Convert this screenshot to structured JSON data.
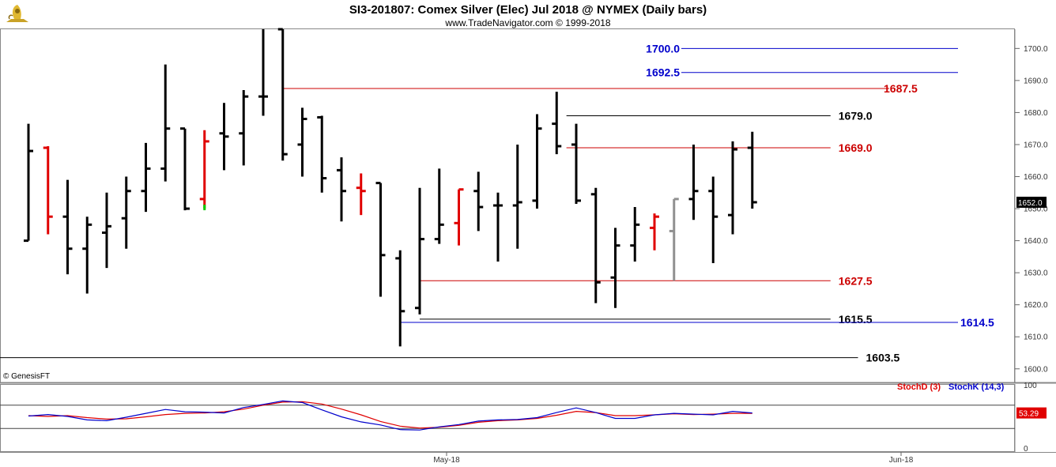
{
  "title": "SI3-201807:  Comex Silver (Elec) Jul 2018 @ NYMEX  (Daily bars)",
  "subtitle": "www.TradeNavigator.com © 1999-2018",
  "copyright": "© GenesisFT",
  "logo_icon": "cornucopia-logo-icon",
  "colors": {
    "bar_default": "#000000",
    "bar_red": "#e00000",
    "bar_gray": "#909090",
    "green_tick": "#00cc00",
    "blue_line": "#0000cc",
    "red_line": "#cc0000",
    "black_line": "#000000",
    "stoch_d": "#e00000",
    "stoch_k": "#0000cc"
  },
  "chart_data": [
    {
      "type": "ohlc",
      "title": "SI3-201807:  Comex Silver (Elec) Jul 2018 @ NYMEX  (Daily bars)",
      "ylim": [
        1596,
        1706
      ],
      "y_ticks": [
        "1700.0",
        "1690.0",
        "1680.0",
        "1670.0",
        "1660.0",
        "1650.0",
        "1640.0",
        "1630.0",
        "1620.0",
        "1610.0",
        "1600.0"
      ],
      "x_labels": [
        "May-18",
        "Jun-18"
      ],
      "last_price_label": "1652.0",
      "bars": [
        {
          "h": 1676.5,
          "l": 1640.0,
          "o": 1640.0,
          "c": 1668.0,
          "color": "black"
        },
        {
          "h": 1669.5,
          "l": 1642.0,
          "o": 1669.0,
          "c": 1647.5,
          "color": "red"
        },
        {
          "h": 1659.0,
          "l": 1629.5,
          "o": 1647.5,
          "c": 1637.5,
          "color": "black"
        },
        {
          "h": 1647.5,
          "l": 1623.5,
          "o": 1637.5,
          "c": 1645.0,
          "color": "black"
        },
        {
          "h": 1655.0,
          "l": 1631.5,
          "o": 1642.5,
          "c": 1644.5,
          "color": "black"
        },
        {
          "h": 1660.0,
          "l": 1637.5,
          "o": 1647.0,
          "c": 1655.5,
          "color": "black"
        },
        {
          "h": 1670.5,
          "l": 1649.0,
          "o": 1655.5,
          "c": 1662.5,
          "color": "black"
        },
        {
          "h": 1695.0,
          "l": 1658.5,
          "o": 1662.5,
          "c": 1675.0,
          "color": "black"
        },
        {
          "h": 1675.0,
          "l": 1649.5,
          "o": 1675.0,
          "c": 1650.0,
          "color": "black"
        },
        {
          "h": 1674.5,
          "l": 1650.0,
          "o": 1653.0,
          "c": 1671.0,
          "color": "red"
        },
        {
          "h": 1683.0,
          "l": 1662.0,
          "o": 1673.5,
          "c": 1672.5,
          "color": "black"
        },
        {
          "h": 1687.0,
          "l": 1663.5,
          "o": 1673.5,
          "c": 1685.0,
          "color": "black"
        },
        {
          "h": 1706.0,
          "l": 1679.0,
          "o": 1685.0,
          "c": 1685.0,
          "color": "black"
        },
        {
          "h": 1706.0,
          "l": 1665.0,
          "o": 1706.0,
          "c": 1667.0,
          "color": "black"
        },
        {
          "h": 1681.5,
          "l": 1660.0,
          "o": 1670.0,
          "c": 1678.0,
          "color": "black"
        },
        {
          "h": 1679.0,
          "l": 1655.0,
          "o": 1678.5,
          "c": 1659.5,
          "color": "black"
        },
        {
          "h": 1666.0,
          "l": 1646.0,
          "o": 1662.0,
          "c": 1655.5,
          "color": "black"
        },
        {
          "h": 1661.0,
          "l": 1648.0,
          "o": 1656.5,
          "c": 1655.5,
          "color": "red"
        },
        {
          "h": 1658.0,
          "l": 1622.5,
          "o": 1658.0,
          "c": 1635.5,
          "color": "black"
        },
        {
          "h": 1637.0,
          "l": 1607.0,
          "o": 1634.5,
          "c": 1618.0,
          "color": "black"
        },
        {
          "h": 1656.5,
          "l": 1617.0,
          "o": 1619.0,
          "c": 1640.5,
          "color": "black"
        },
        {
          "h": 1662.5,
          "l": 1639.0,
          "o": 1640.5,
          "c": 1645.0,
          "color": "black"
        },
        {
          "h": 1656.0,
          "l": 1638.5,
          "o": 1645.5,
          "c": 1656.0,
          "color": "red"
        },
        {
          "h": 1661.5,
          "l": 1643.0,
          "o": 1655.5,
          "c": 1650.5,
          "color": "black"
        },
        {
          "h": 1655.0,
          "l": 1633.5,
          "o": 1651.0,
          "c": 1651.0,
          "color": "black"
        },
        {
          "h": 1670.0,
          "l": 1637.5,
          "o": 1651.0,
          "c": 1652.0,
          "color": "black"
        },
        {
          "h": 1679.5,
          "l": 1650.0,
          "o": 1652.5,
          "c": 1675.0,
          "color": "black"
        },
        {
          "h": 1686.5,
          "l": 1667.0,
          "o": 1676.5,
          "c": 1669.5,
          "color": "black"
        },
        {
          "h": 1676.5,
          "l": 1651.5,
          "o": 1670.0,
          "c": 1652.5,
          "color": "black"
        },
        {
          "h": 1656.5,
          "l": 1620.5,
          "o": 1654.5,
          "c": 1627.0,
          "color": "black"
        },
        {
          "h": 1644.0,
          "l": 1619.0,
          "o": 1628.5,
          "c": 1638.5,
          "color": "black"
        },
        {
          "h": 1650.5,
          "l": 1633.5,
          "o": 1638.5,
          "c": 1645.0,
          "color": "black"
        },
        {
          "h": 1648.5,
          "l": 1637.0,
          "o": 1644.0,
          "c": 1647.5,
          "color": "red"
        },
        {
          "h": 1653.0,
          "l": 1627.5,
          "o": 1643.0,
          "c": 1653.0,
          "color": "gray"
        },
        {
          "h": 1670.0,
          "l": 1646.5,
          "o": 1653.0,
          "c": 1655.5,
          "color": "black"
        },
        {
          "h": 1660.0,
          "l": 1633.0,
          "o": 1655.5,
          "c": 1647.5,
          "color": "black"
        },
        {
          "h": 1671.0,
          "l": 1642.0,
          "o": 1648.0,
          "c": 1668.5,
          "color": "black"
        },
        {
          "h": 1674.0,
          "l": 1650.0,
          "o": 1669.0,
          "c": 1652.0,
          "color": "black"
        }
      ],
      "levels": [
        {
          "value": 1700.0,
          "label": "1700.0",
          "color": "blue",
          "x0": 0.0,
          "x1": 48.0
        },
        {
          "value": 1692.5,
          "label": "1692.5",
          "color": "blue",
          "x0": 0.0,
          "x1": 48.0
        },
        {
          "value": 1687.5,
          "label": "1687.5",
          "color": "red",
          "x0": 13.0,
          "x1": 44.0
        },
        {
          "value": 1679.0,
          "label": "1679.0",
          "color": "black",
          "x0": 27.5,
          "x1": 41.0
        },
        {
          "value": 1669.0,
          "label": "1669.0",
          "color": "red",
          "x0": 27.5,
          "x1": 41.0
        },
        {
          "value": 1627.5,
          "label": "1627.5",
          "color": "red",
          "x0": 20.0,
          "x1": 41.0
        },
        {
          "value": 1615.5,
          "label": "1615.5",
          "color": "black",
          "x0": 20.0,
          "x1": 41.0
        },
        {
          "value": 1614.5,
          "label": "1614.5",
          "color": "blue",
          "x0": 19.0,
          "x1": 48.0
        },
        {
          "value": 1603.5,
          "label": "1603.5",
          "color": "black",
          "x0": -1.5,
          "x1": 42.0
        }
      ]
    },
    {
      "type": "line",
      "title": "",
      "ylim": [
        0,
        100
      ],
      "y_ticks": [
        "100",
        "0"
      ],
      "reference_lines": [
        80,
        20
      ],
      "last_value_label": "53.29",
      "series": [
        {
          "name": "StochD (3)",
          "color": "stoch_d",
          "values": [
            53,
            51,
            53,
            48,
            44,
            45,
            50,
            56,
            59,
            60,
            63,
            70,
            80,
            88,
            89,
            83,
            70,
            55,
            38,
            26,
            21,
            23,
            28,
            36,
            40,
            42,
            46,
            54,
            64,
            61,
            53,
            53,
            55,
            58,
            56,
            57,
            59,
            59
          ]
        },
        {
          "name": "StochK (14,3)",
          "color": "stoch_k",
          "values": [
            52,
            56,
            51,
            42,
            40,
            49,
            59,
            69,
            63,
            62,
            60,
            74,
            82,
            91,
            87,
            68,
            50,
            37,
            29,
            17,
            16,
            24,
            30,
            39,
            42,
            43,
            48,
            61,
            73,
            61,
            46,
            46,
            55,
            59,
            57,
            55,
            64,
            60
          ]
        }
      ]
    }
  ]
}
